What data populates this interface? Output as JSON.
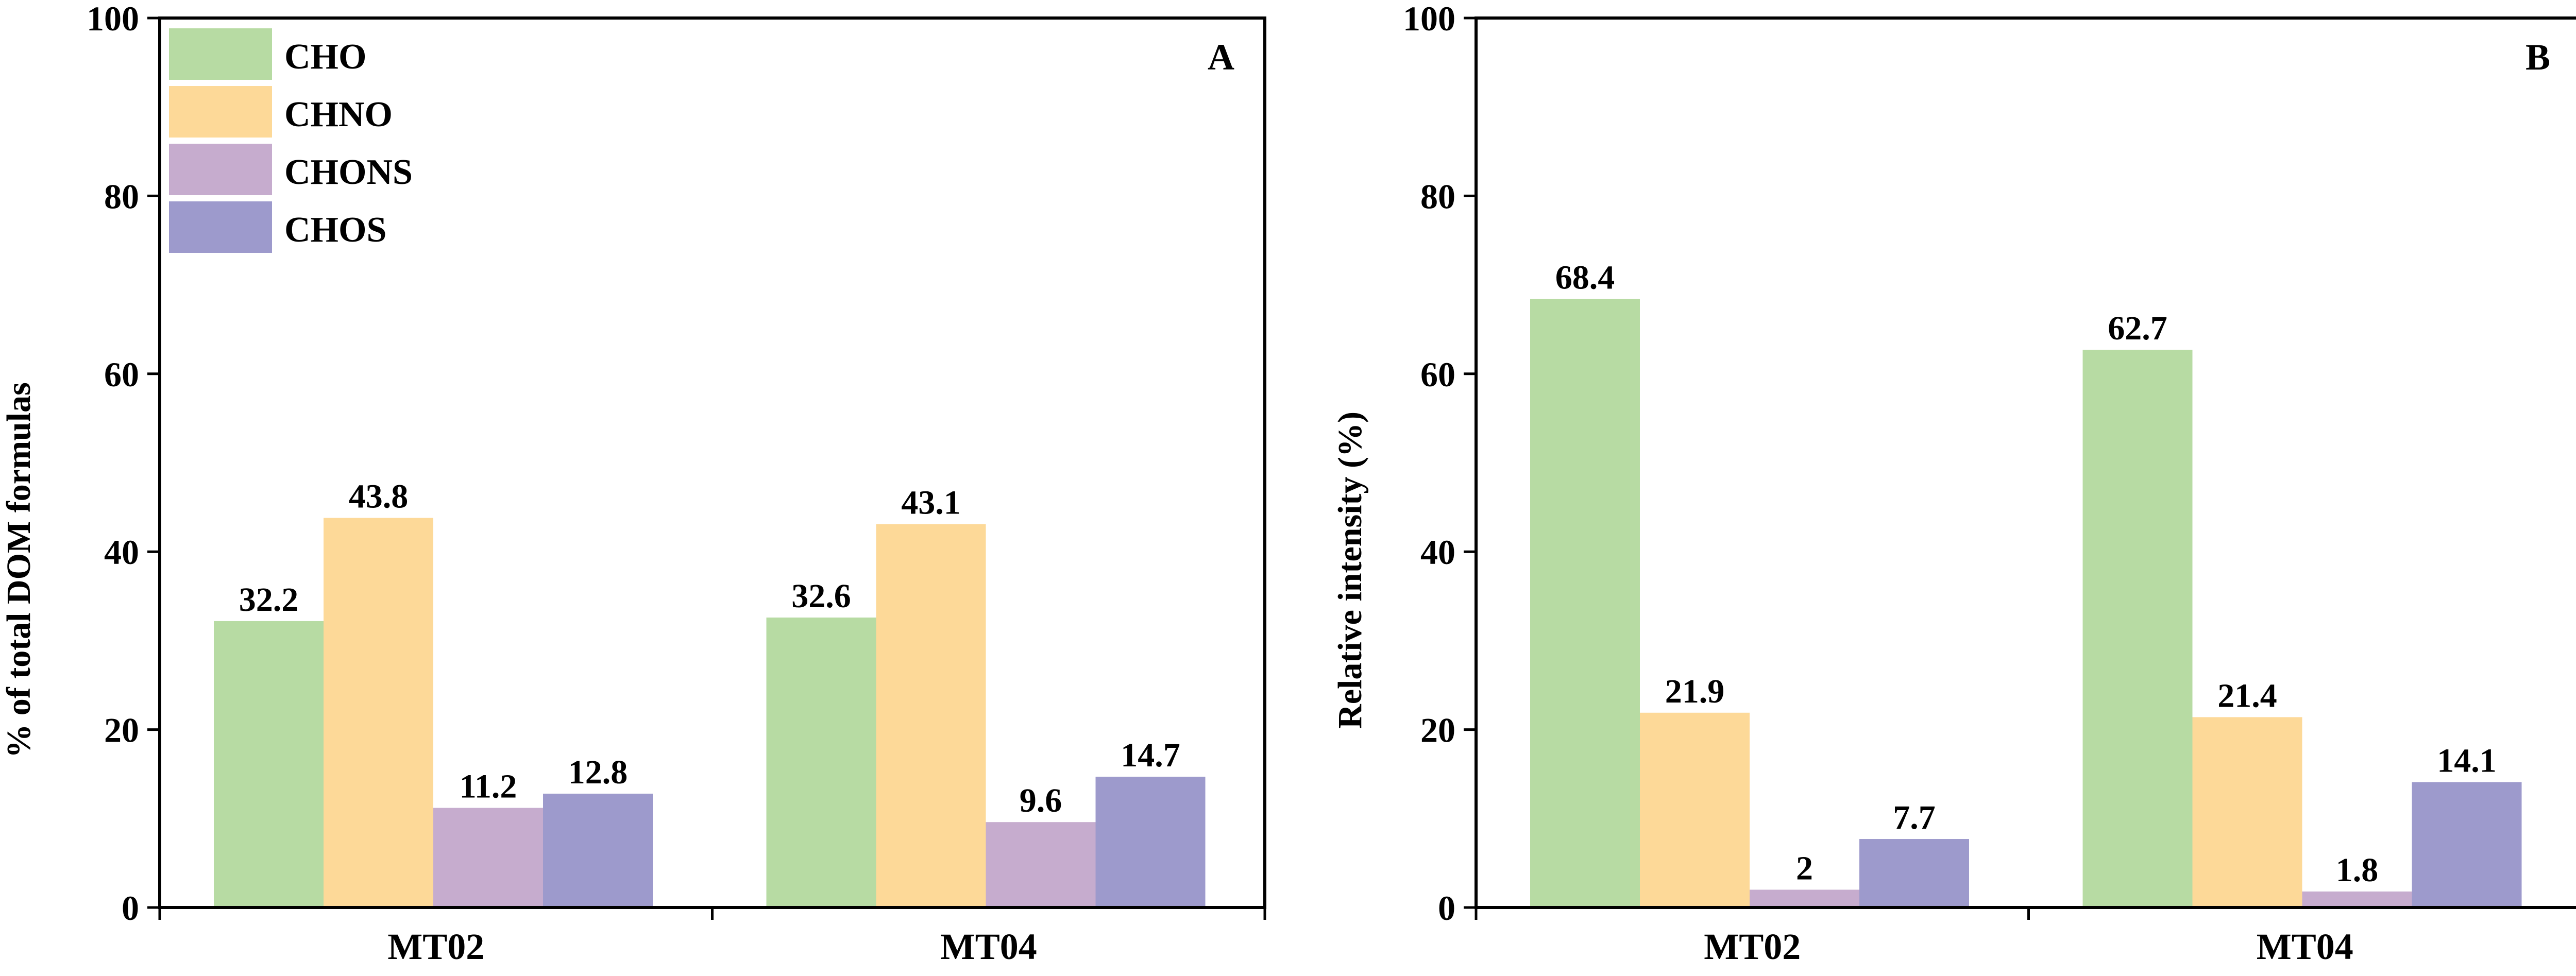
{
  "colors": {
    "CHO": "#b7dba3",
    "CHNO": "#fdd998",
    "CHONS": "#c6acce",
    "CHOS": "#9d9acc"
  },
  "legend": [
    "CHO",
    "CHNO",
    "CHONS",
    "CHOS"
  ],
  "chart_data": [
    {
      "type": "bar",
      "panel": "A",
      "categories": [
        "MT02",
        "MT04"
      ],
      "series": [
        {
          "name": "CHO",
          "values": [
            32.2,
            32.6
          ]
        },
        {
          "name": "CHNO",
          "values": [
            43.8,
            43.1
          ]
        },
        {
          "name": "CHONS",
          "values": [
            11.2,
            9.6
          ]
        },
        {
          "name": "CHOS",
          "values": [
            12.8,
            14.7
          ]
        }
      ],
      "value_labels": [
        [
          "32.2",
          "32.6"
        ],
        [
          "43.8",
          "43.1"
        ],
        [
          "11.2",
          "9.6"
        ],
        [
          "12.8",
          "14.7"
        ]
      ],
      "ylabel": "% of total DOM formulas",
      "xlabel": "",
      "ylim": [
        0,
        100
      ],
      "yticks": [
        "0",
        "20",
        "40",
        "60",
        "80",
        "100"
      ],
      "legend_position": "top-left",
      "grid": false
    },
    {
      "type": "bar",
      "panel": "B",
      "categories": [
        "MT02",
        "MT04"
      ],
      "series": [
        {
          "name": "CHO",
          "values": [
            68.4,
            62.7
          ]
        },
        {
          "name": "CHNO",
          "values": [
            21.9,
            21.4
          ]
        },
        {
          "name": "CHONS",
          "values": [
            2,
            1.8
          ]
        },
        {
          "name": "CHOS",
          "values": [
            7.7,
            14.1
          ]
        }
      ],
      "value_labels": [
        [
          "68.4",
          "62.7"
        ],
        [
          "21.9",
          "21.4"
        ],
        [
          "2",
          "1.8"
        ],
        [
          "7.7",
          "14.1"
        ]
      ],
      "ylabel": "Relative intensity (%)",
      "xlabel": "",
      "ylim": [
        0,
        100
      ],
      "yticks": [
        "0",
        "20",
        "40",
        "60",
        "80",
        "100"
      ],
      "grid": false
    }
  ]
}
